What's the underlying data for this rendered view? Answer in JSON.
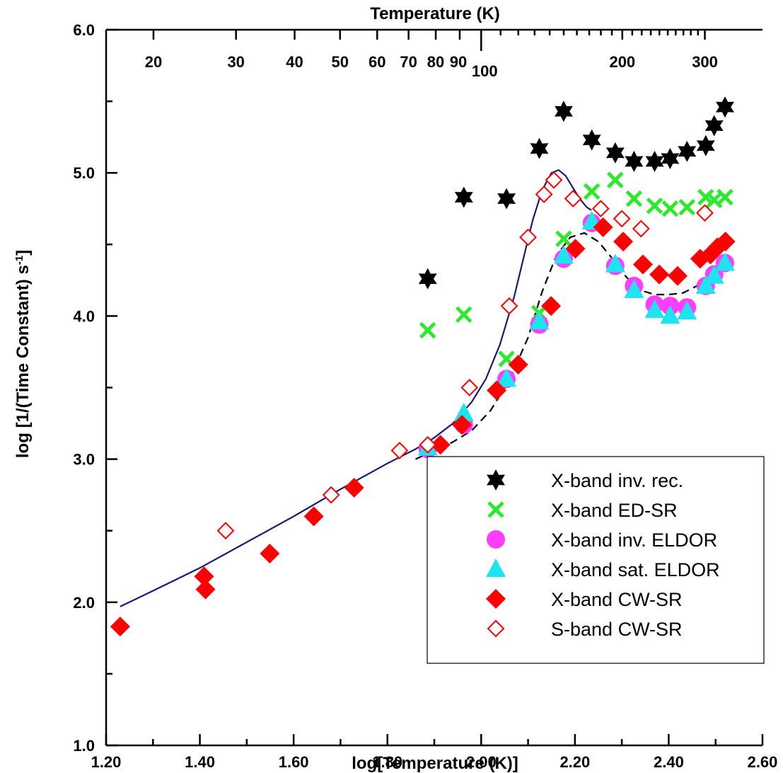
{
  "chart_data": {
    "type": "scatter",
    "title": "",
    "xlabel": "log[Temperature (K)]",
    "ylabel": "log [1/(Time Constant) s",
    "ylabel_sup": "-1",
    "ylabel_end": "]",
    "top_xlabel": "Temperature (K)",
    "xlim": [
      1.2,
      2.6
    ],
    "ylim": [
      1.0,
      6.0
    ],
    "x_ticks": [
      "1.20",
      "1.40",
      "1.60",
      "1.80",
      "2.00",
      "2.20",
      "2.40",
      "2.60"
    ],
    "y_ticks": [
      "1.0",
      "2.0",
      "3.0",
      "4.0",
      "5.0",
      "6.0"
    ],
    "top_ticks": [
      "20",
      "30",
      "40",
      "50",
      "60",
      "70",
      "80",
      "90",
      "100",
      "200",
      "300"
    ],
    "legend_position": "lower-right",
    "series": [
      {
        "name": "X-band inv. rec.",
        "marker": "star6",
        "color": "#000000",
        "x": [
          1.886,
          1.963,
          2.054,
          2.124,
          2.176,
          2.236,
          2.286,
          2.326,
          2.37,
          2.403,
          2.439,
          2.479,
          2.497,
          2.52
        ],
        "y": [
          4.26,
          4.83,
          4.82,
          5.17,
          5.43,
          5.23,
          5.14,
          5.08,
          5.08,
          5.1,
          5.15,
          5.19,
          5.33,
          5.46
        ]
      },
      {
        "name": "X-band ED-SR",
        "marker": "x",
        "color": "#2ee82e",
        "x": [
          1.886,
          1.963,
          2.054,
          2.124,
          2.176,
          2.236,
          2.286,
          2.326,
          2.37,
          2.403,
          2.439,
          2.479,
          2.497,
          2.52
        ],
        "y": [
          3.9,
          4.01,
          3.7,
          4.02,
          4.54,
          4.87,
          4.95,
          4.82,
          4.77,
          4.75,
          4.76,
          4.83,
          4.81,
          4.83
        ]
      },
      {
        "name": "X-band inv. ELDOR",
        "marker": "circle",
        "color": "#ff3dff",
        "x": [
          1.886,
          1.963,
          2.054,
          2.124,
          2.176,
          2.236,
          2.286,
          2.326,
          2.37,
          2.403,
          2.439,
          2.479,
          2.497,
          2.52
        ],
        "y": [
          3.07,
          3.24,
          3.56,
          3.94,
          4.4,
          4.65,
          4.35,
          4.21,
          4.08,
          4.07,
          4.06,
          4.21,
          4.29,
          4.37
        ]
      },
      {
        "name": "X-band sat. ELDOR",
        "marker": "triangle",
        "color": "#1ee4f0",
        "x": [
          1.886,
          1.963,
          2.054,
          2.124,
          2.176,
          2.236,
          2.286,
          2.326,
          2.37,
          2.403,
          2.439,
          2.479,
          2.497,
          2.52
        ],
        "y": [
          3.08,
          3.32,
          3.56,
          3.96,
          4.42,
          4.66,
          4.36,
          4.18,
          4.04,
          4.0,
          4.03,
          4.21,
          4.28,
          4.37
        ]
      },
      {
        "name": "X-band CW-SR",
        "marker": "diamond-filled",
        "color": "#ff0000",
        "x": [
          1.23,
          1.409,
          1.412,
          1.549,
          1.643,
          1.729,
          1.913,
          1.959,
          2.033,
          2.079,
          2.149,
          2.201,
          2.26,
          2.303,
          2.345,
          2.38,
          2.419,
          2.467,
          2.489,
          2.504,
          2.521
        ],
        "y": [
          1.83,
          2.18,
          2.09,
          2.34,
          2.6,
          2.8,
          3.1,
          3.24,
          3.48,
          3.66,
          4.07,
          4.47,
          4.62,
          4.52,
          4.36,
          4.29,
          4.28,
          4.4,
          4.43,
          4.48,
          4.52
        ]
      },
      {
        "name": "S-band CW-SR",
        "marker": "diamond-open",
        "color": "#ff0000",
        "x": [
          1.455,
          1.68,
          1.826,
          1.886,
          1.975,
          2.06,
          2.1,
          2.134,
          2.155,
          2.196,
          2.255,
          2.3,
          2.341,
          2.477
        ],
        "y": [
          2.5,
          2.75,
          3.06,
          3.1,
          3.5,
          4.07,
          4.55,
          4.85,
          4.95,
          4.82,
          4.75,
          4.68,
          4.61,
          4.72
        ]
      }
    ],
    "fit_curves": [
      {
        "style": "solid",
        "color": "#1a1a70",
        "x": [
          1.23,
          1.3,
          1.4,
          1.5,
          1.6,
          1.7,
          1.8,
          1.86,
          1.9,
          1.94,
          1.98,
          2.01,
          2.04,
          2.07,
          2.09,
          2.11,
          2.13,
          2.15,
          2.165,
          2.18,
          2.195,
          2.21,
          2.225,
          2.235
        ],
        "y": [
          1.97,
          2.08,
          2.24,
          2.42,
          2.6,
          2.79,
          2.97,
          3.07,
          3.15,
          3.25,
          3.4,
          3.56,
          3.8,
          4.13,
          4.4,
          4.67,
          4.88,
          5.0,
          5.02,
          4.98,
          4.9,
          4.82,
          4.76,
          4.74
        ]
      },
      {
        "style": "dashed",
        "color": "#000000",
        "x": [
          1.86,
          1.9,
          1.94,
          1.98,
          2.02,
          2.06,
          2.1,
          2.13,
          2.16,
          2.19,
          2.22,
          2.25,
          2.28,
          2.31,
          2.34,
          2.37,
          2.4,
          2.43,
          2.46,
          2.49,
          2.52
        ],
        "y": [
          3.0,
          3.06,
          3.12,
          3.2,
          3.34,
          3.55,
          3.85,
          4.17,
          4.42,
          4.55,
          4.58,
          4.52,
          4.4,
          4.27,
          4.18,
          4.15,
          4.15,
          4.16,
          4.21,
          4.28,
          4.36
        ]
      }
    ]
  }
}
